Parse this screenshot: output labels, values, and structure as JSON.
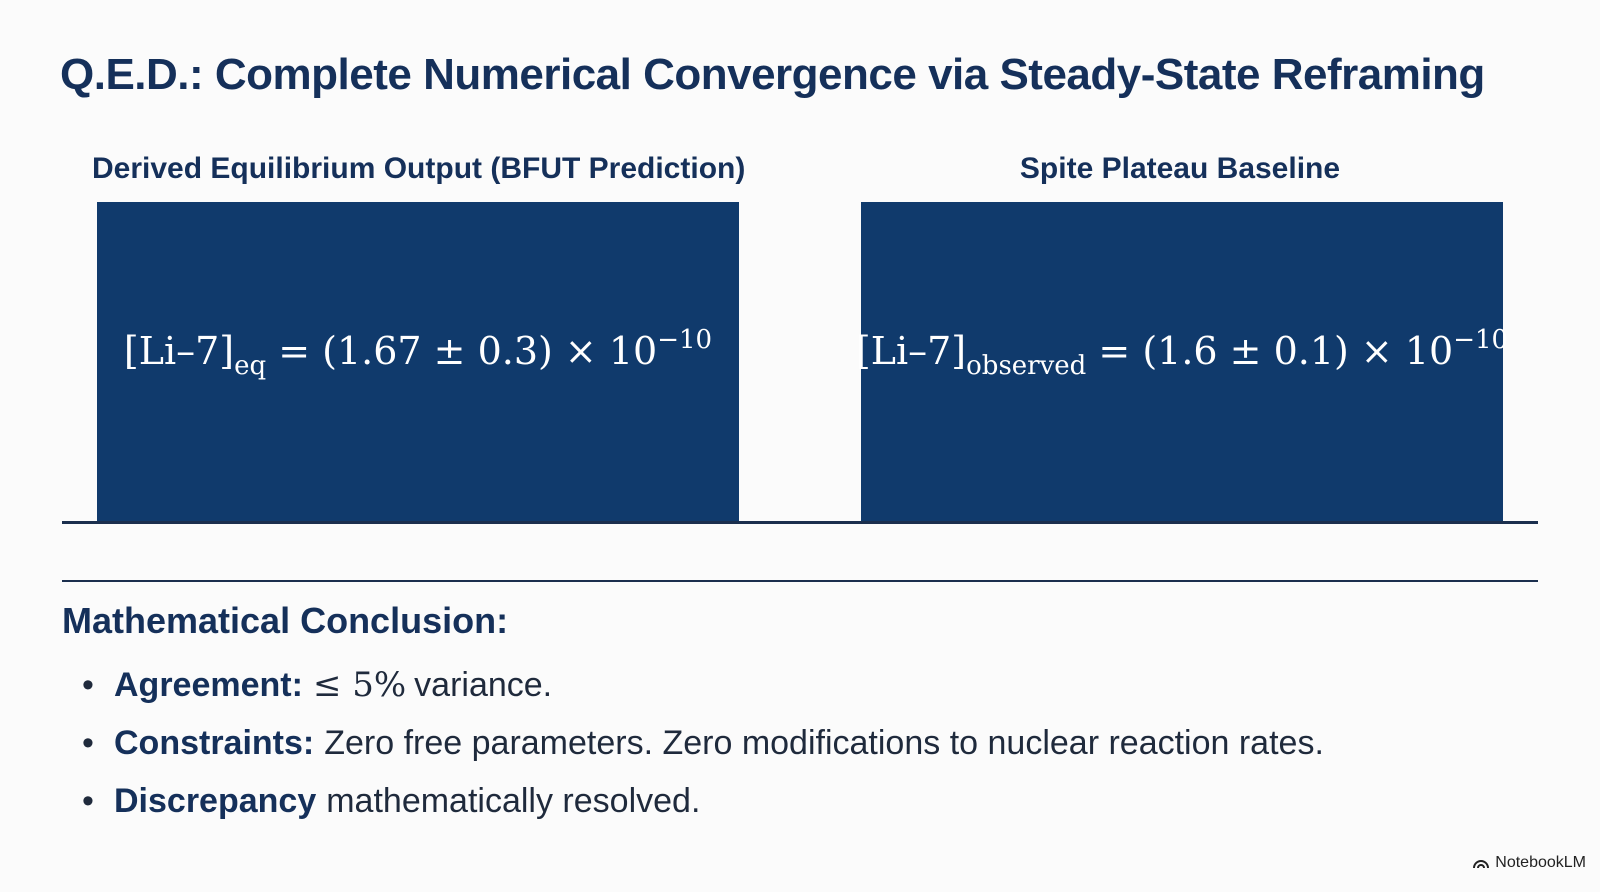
{
  "slide": {
    "title": "Q.E.D.: Complete Numerical Convergence via Steady-State Reframing"
  },
  "panels": {
    "left": {
      "label": "Derived Equilibrium Output (BFUT Prediction)",
      "formula_base": "[Li–7]",
      "formula_subscript": "eq",
      "formula_value": " = (1.67 ± 0.3) × 10",
      "formula_exponent": "−10"
    },
    "right": {
      "label": "Spite Plateau Baseline",
      "formula_base": "[Li–7]",
      "formula_subscript": "observed",
      "formula_value": " = (1.6 ± 0.1) × 10",
      "formula_exponent": "−10"
    }
  },
  "conclusion": {
    "heading": "Mathematical Conclusion:",
    "bullets": [
      {
        "key": "Agreement:",
        "math": "≤ 5%",
        "text": "variance."
      },
      {
        "key": "Constraints:",
        "math": "",
        "text": "Zero free parameters. Zero modifications to nuclear reaction rates."
      },
      {
        "key": "Discrepancy",
        "math": "",
        "text": "mathematically resolved."
      }
    ]
  },
  "watermark": {
    "text": "NotebookLM",
    "icon": "notebooklm-logo-icon"
  },
  "colors": {
    "panel_fill": "#103a6c",
    "title_text": "#15305a",
    "background": "#fbfbfb"
  }
}
